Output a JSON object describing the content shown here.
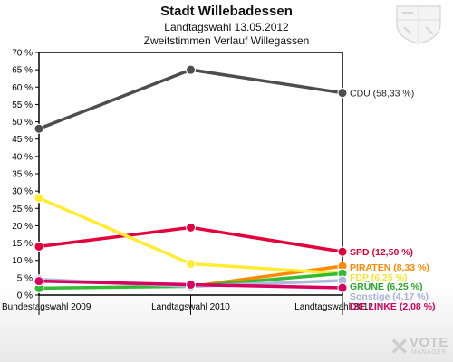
{
  "header": {
    "title": "Stadt Willebadessen",
    "subtitle": "Landtagswahl 13.05.2012",
    "subtitle2": "Zweitstimmen Verlauf Willegassen"
  },
  "branding": {
    "logo_text": "VOTE",
    "logo_subtext": "MANAGER",
    "crest_icon": "coat-of-arms-icon"
  },
  "chart_data": {
    "type": "line",
    "title": "Stadt Willebadessen",
    "x": [
      "Bundestagswahl 2009",
      "Landtagswahl 2010",
      "Landtagswahl 2012"
    ],
    "ylim": [
      0,
      70
    ],
    "yticks": [
      "0 %",
      "5 %",
      "10 %",
      "15 %",
      "20 %",
      "25 %",
      "30 %",
      "35 %",
      "40 %",
      "45 %",
      "50 %",
      "55 %",
      "60 %",
      "65 %",
      "70 %"
    ],
    "grid": false,
    "series": [
      {
        "name": "CDU",
        "label": "CDU (58,33 %)",
        "color": "#4d4d4d",
        "label_color": "#222222",
        "values": [
          48.0,
          65.0,
          58.33
        ]
      },
      {
        "name": "SPD",
        "label": "SPD (12,50 %)",
        "color": "#e2003a",
        "label_color": "#e2003a",
        "values": [
          14.0,
          19.5,
          12.5
        ]
      },
      {
        "name": "PIRATEN",
        "label": "PIRATEN (8,33 %)",
        "color": "#ff8800",
        "label_color": "#ff8800",
        "values": [
          null,
          2.5,
          8.33
        ]
      },
      {
        "name": "FDP",
        "label": "FDP (6,25 %)",
        "color": "#ffec33",
        "label_color": "#f2e43a",
        "values": [
          28.0,
          9.0,
          6.25
        ]
      },
      {
        "name": "GRÜNE",
        "label": "GRÜNE (6,25 %)",
        "color": "#33bb33",
        "label_color": "#2ea52e",
        "values": [
          2.0,
          2.5,
          6.25
        ]
      },
      {
        "name": "Sonstige",
        "label": "Sonstige (4,17 %)",
        "color": "#b0b8dd",
        "label_color": "#aab0d8",
        "values": [
          4.5,
          2.5,
          4.17
        ]
      },
      {
        "name": "DIE LINKE",
        "label": "DIE LINKE (2,08 %)",
        "color": "#d8005f",
        "label_color": "#d8005f",
        "values": [
          4.0,
          3.0,
          2.08
        ]
      }
    ]
  }
}
